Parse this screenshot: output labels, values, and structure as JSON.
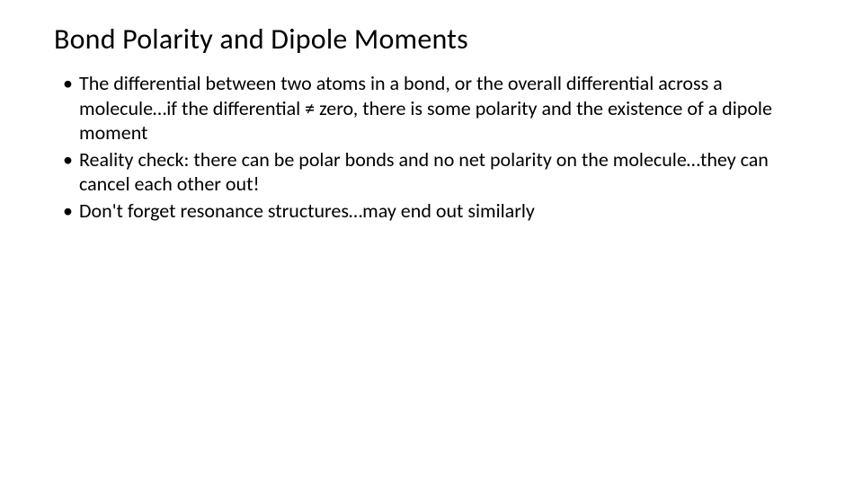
{
  "slide": {
    "title": "Bond Polarity and Dipole Moments",
    "bullets": [
      "The differential between two atoms in a bond, or the overall differential across a molecule…if the differential ≠ zero, there is some polarity and the existence of a dipole moment",
      "Reality check: there can be polar bonds and no net polarity on the molecule…they can cancel each other out!",
      "Don't forget resonance structures…may end out similarly"
    ]
  },
  "styling": {
    "background_color": "#ffffff",
    "text_color": "#000000",
    "title_fontsize": 32,
    "body_fontsize": 22,
    "font_family": "Calibri"
  }
}
